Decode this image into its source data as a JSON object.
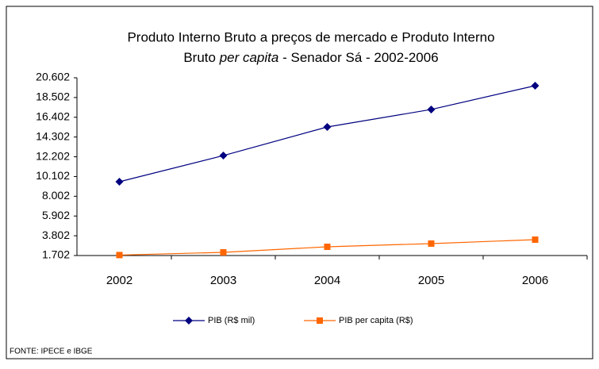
{
  "chart_data": {
    "type": "line",
    "title": [
      "Produto Interno Bruto a preços de mercado e  Produto Interno",
      "Bruto",
      "per capita",
      "- Senador Sá - 2002-2006"
    ],
    "categories": [
      "2002",
      "2003",
      "2004",
      "2005",
      "2006"
    ],
    "series": [
      {
        "name": "PIB (R$ mil)",
        "color": "#000080",
        "marker": "diamond",
        "values": [
          9550,
          12330,
          15370,
          17230,
          19760
        ]
      },
      {
        "name": "PIB per capita (R$)",
        "color": "#ff6600",
        "marker": "square",
        "values": [
          1750,
          2040,
          2630,
          2970,
          3390
        ]
      }
    ],
    "ylim": [
      1702,
      20602
    ],
    "yticks": [
      {
        "value": 1702,
        "label": "1.702"
      },
      {
        "value": 3802,
        "label": "3.802"
      },
      {
        "value": 5902,
        "label": "5.902"
      },
      {
        "value": 8002,
        "label": "8.002"
      },
      {
        "value": 10102,
        "label": "10.102"
      },
      {
        "value": 12202,
        "label": "12.202"
      },
      {
        "value": 14302,
        "label": "14.302"
      },
      {
        "value": 16402,
        "label": "16.402"
      },
      {
        "value": 18502,
        "label": "18.502"
      },
      {
        "value": 20602,
        "label": "20.602"
      }
    ],
    "grid": false,
    "legend": "bottom",
    "source": "FONTE: IPECE e IBGE"
  }
}
